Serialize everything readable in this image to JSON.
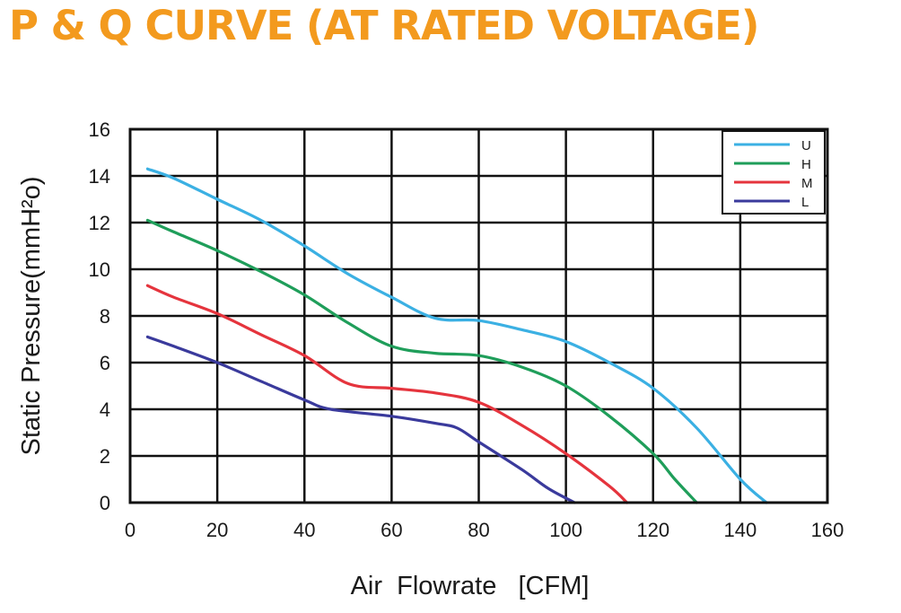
{
  "title_color": "#f39a1e",
  "chart_data": {
    "type": "line",
    "title": "P & Q CURVE (AT RATED VOLTAGE)",
    "xlabel": "Air  Flowrate   [CFM]",
    "ylabel": "Static Pressure(mmH²o)",
    "xlim": [
      0,
      160
    ],
    "ylim": [
      0,
      16
    ],
    "xticks": [
      0,
      20,
      40,
      60,
      80,
      100,
      120,
      140,
      160
    ],
    "yticks": [
      0,
      2,
      4,
      6,
      8,
      10,
      12,
      14,
      16
    ],
    "grid": true,
    "legend_position": "top-right",
    "series": [
      {
        "name": "U",
        "color": "#3bb0e3",
        "points": [
          [
            4,
            14.3
          ],
          [
            10,
            13.9
          ],
          [
            20,
            13.0
          ],
          [
            30,
            12.1
          ],
          [
            40,
            11.0
          ],
          [
            50,
            9.8
          ],
          [
            60,
            8.8
          ],
          [
            70,
            7.9
          ],
          [
            80,
            7.8
          ],
          [
            90,
            7.4
          ],
          [
            100,
            6.9
          ],
          [
            110,
            6.0
          ],
          [
            120,
            4.9
          ],
          [
            130,
            3.2
          ],
          [
            140,
            1.0
          ],
          [
            146,
            0
          ]
        ]
      },
      {
        "name": "H",
        "color": "#1f9e5a",
        "points": [
          [
            4,
            12.1
          ],
          [
            10,
            11.6
          ],
          [
            20,
            10.8
          ],
          [
            30,
            9.9
          ],
          [
            40,
            8.9
          ],
          [
            50,
            7.7
          ],
          [
            60,
            6.7
          ],
          [
            70,
            6.4
          ],
          [
            80,
            6.3
          ],
          [
            90,
            5.8
          ],
          [
            100,
            5.0
          ],
          [
            110,
            3.7
          ],
          [
            120,
            2.1
          ],
          [
            125,
            1.0
          ],
          [
            130,
            0
          ]
        ]
      },
      {
        "name": "M",
        "color": "#e5343d",
        "points": [
          [
            4,
            9.3
          ],
          [
            10,
            8.8
          ],
          [
            20,
            8.1
          ],
          [
            30,
            7.2
          ],
          [
            40,
            6.3
          ],
          [
            50,
            5.1
          ],
          [
            60,
            4.9
          ],
          [
            70,
            4.7
          ],
          [
            80,
            4.3
          ],
          [
            90,
            3.3
          ],
          [
            100,
            2.1
          ],
          [
            110,
            0.7
          ],
          [
            114,
            0
          ]
        ]
      },
      {
        "name": "L",
        "color": "#3a3a9c",
        "points": [
          [
            4,
            7.1
          ],
          [
            10,
            6.7
          ],
          [
            20,
            6.0
          ],
          [
            30,
            5.2
          ],
          [
            40,
            4.4
          ],
          [
            46,
            4.0
          ],
          [
            60,
            3.7
          ],
          [
            70,
            3.4
          ],
          [
            75,
            3.2
          ],
          [
            80,
            2.6
          ],
          [
            90,
            1.4
          ],
          [
            96,
            0.6
          ],
          [
            102,
            0
          ]
        ]
      }
    ]
  }
}
